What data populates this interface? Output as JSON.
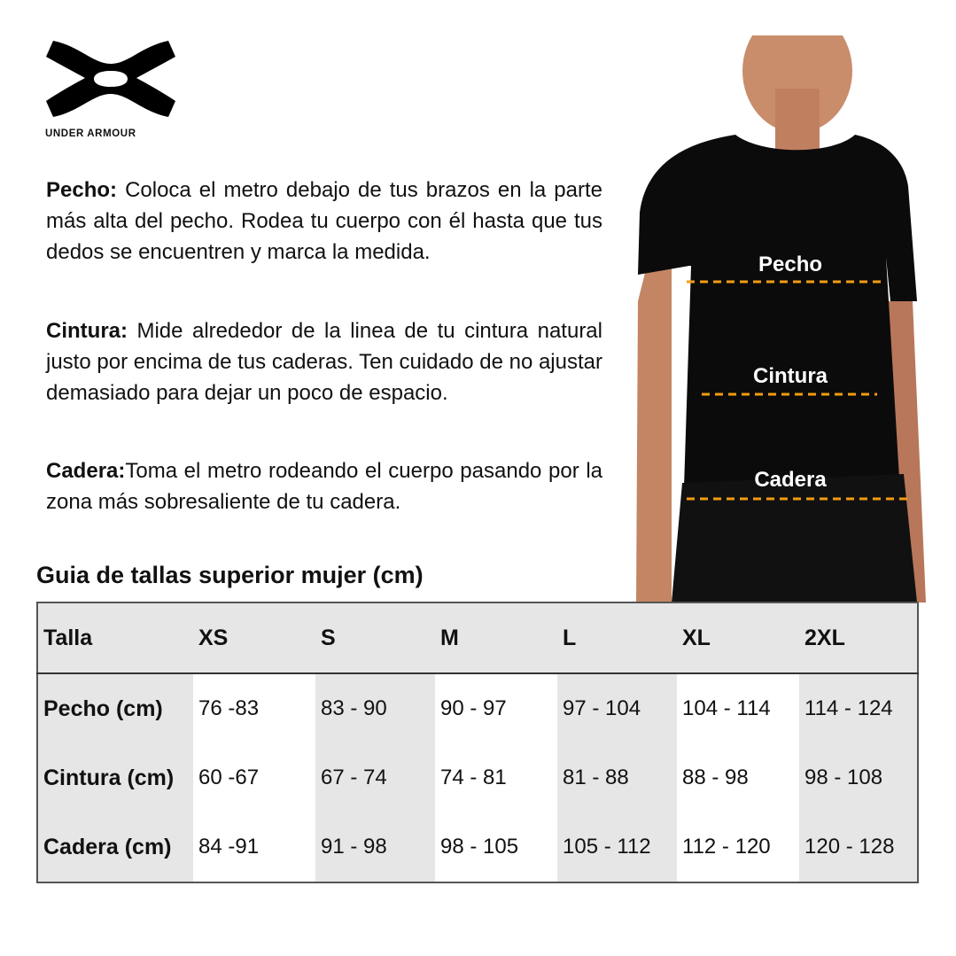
{
  "brand": {
    "name": "UNDER ARMOUR"
  },
  "instructions": [
    {
      "term": "Pecho:",
      "text": "Coloca el metro debajo de tus brazos en la parte más alta del pecho. Rodea tu cuerpo con él hasta que tus dedos se encuentren y marca la medida."
    },
    {
      "term": "Cintura:",
      "text": "Mide alrededor de la linea de tu cintura natural justo por encima de tus caderas. Ten cuidado de no ajustar demasiado para dejar un poco de espacio."
    },
    {
      "term": "Cadera:",
      "text": "Toma el metro rodeando el cuerpo pasando por la zona más sobresaliente de tu cadera."
    }
  ],
  "model_labels": [
    "Pecho",
    "Cintura",
    "Cadera"
  ],
  "accent_color": "#f39c12",
  "table": {
    "title": "Guia de tallas superior mujer (cm)",
    "headers": [
      "Talla",
      "XS",
      "S",
      "M",
      "L",
      "XL",
      "2XL"
    ],
    "rows": [
      {
        "label": "Pecho (cm)",
        "values": [
          "76 -83",
          "83 - 90",
          "90 - 97",
          "97 - 104",
          "104 - 114",
          "114 - 124"
        ]
      },
      {
        "label": "Cintura (cm)",
        "values": [
          "60 -67",
          "67 - 74",
          "74 - 81",
          "81 - 88",
          "88 - 98",
          "98 - 108"
        ]
      },
      {
        "label": "Cadera (cm)",
        "values": [
          "84 -91",
          "91 - 98",
          "98 - 105",
          "105 - 112",
          "112 - 120",
          "120 - 128"
        ]
      }
    ]
  }
}
